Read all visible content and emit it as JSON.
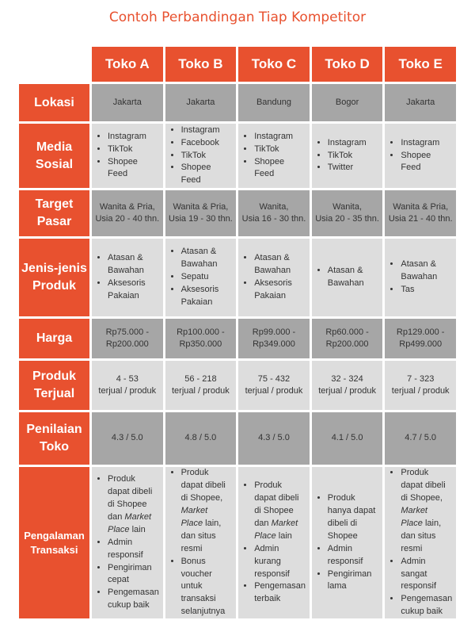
{
  "title": "Contoh Perbandingan Tiap Kompetitor",
  "stores": [
    "Toko A",
    "Toko B",
    "Toko C",
    "Toko D",
    "Toko E"
  ],
  "rows": {
    "lokasi": {
      "label": "Lokasi",
      "cells": [
        "Jakarta",
        "Jakarta",
        "Bandung",
        "Bogor",
        "Jakarta"
      ]
    },
    "media_sosial": {
      "label_1": "Media",
      "label_2": "Sosial",
      "cells": [
        [
          "Instagram",
          "TikTok",
          "Shopee Feed"
        ],
        [
          "Instagram",
          "Facebook",
          "TikTok",
          "Shopee Feed"
        ],
        [
          "Instagram",
          "TikTok",
          "Shopee Feed"
        ],
        [
          "Instagram",
          "TikTok",
          "Twitter"
        ],
        [
          "Instagram",
          "Shopee Feed"
        ]
      ]
    },
    "target_pasar": {
      "label_1": "Target",
      "label_2": "Pasar",
      "cells": [
        [
          "Wanita & Pria,",
          "Usia 20 - 40 thn."
        ],
        [
          "Wanita & Pria,",
          "Usia 19 - 30 thn."
        ],
        [
          "Wanita,",
          "Usia 16 - 30 thn."
        ],
        [
          "Wanita,",
          "Usia 20 - 35 thn."
        ],
        [
          "Wanita & Pria,",
          "Usia 21 - 40 thn."
        ]
      ]
    },
    "jenis_produk": {
      "label_1": "Jenis-jenis",
      "label_2": "Produk",
      "cells": [
        [
          "Atasan & Bawahan",
          "Aksesoris Pakaian"
        ],
        [
          "Atasan & Bawahan",
          "Sepatu",
          "Aksesoris Pakaian"
        ],
        [
          "Atasan & Bawahan",
          "Aksesoris Pakaian"
        ],
        [
          "Atasan & Bawahan"
        ],
        [
          "Atasan & Bawahan",
          "Tas"
        ]
      ]
    },
    "harga": {
      "label": "Harga",
      "cells": [
        [
          "Rp75.000 -",
          "Rp200.000"
        ],
        [
          "Rp100.000 -",
          "Rp350.000"
        ],
        [
          "Rp99.000 -",
          "Rp349.000"
        ],
        [
          "Rp60.000 -",
          "Rp200.000"
        ],
        [
          "Rp129.000 -",
          "Rp499.000"
        ]
      ]
    },
    "produk_terjual": {
      "label_1": "Produk",
      "label_2": "Terjual",
      "cells": [
        [
          "4 - 53",
          "terjual / produk"
        ],
        [
          "56 - 218",
          "terjual / produk"
        ],
        [
          "75 - 432",
          "terjual / produk"
        ],
        [
          "32 - 324",
          "terjual / produk"
        ],
        [
          "7 - 323",
          "terjual / produk"
        ]
      ]
    },
    "penilaian_toko": {
      "label_1": "Penilaian",
      "label_2": "Toko",
      "cells": [
        "4.3 / 5.0",
        "4.8 / 5.0",
        "4.3 / 5.0",
        "4.1 / 5.0",
        "4.7 / 5.0"
      ]
    },
    "pengalaman_transaksi": {
      "label_1": "Pengalaman",
      "label_2": "Transaksi",
      "cells": [
        {
          "b1_pre": "Produk dapat dibeli di Shopee dan ",
          "b1_italic": "Market Place",
          "b1_post": " lain",
          "rest": [
            "Admin responsif",
            "Pengiriman cepat",
            "Pengemasan cukup baik"
          ]
        },
        {
          "b1_pre": "Produk dapat dibeli di Shopee, ",
          "b1_italic": "Market Place",
          "b1_post": " lain, dan situs resmi",
          "rest": [
            "Bonus voucher untuk transaksi selanjutnya"
          ]
        },
        {
          "b1_pre": "Produk dapat dibeli di Shopee dan ",
          "b1_italic": "Market Place",
          "b1_post": " lain",
          "rest": [
            "Admin kurang responsif",
            "Pengemasan terbaik"
          ]
        },
        {
          "b1_pre": "Produk hanya dapat dibeli di Shopee",
          "b1_italic": "",
          "b1_post": "",
          "rest": [
            "Admin responsif",
            "Pengiriman lama"
          ]
        },
        {
          "b1_pre": "Produk dapat dibeli di Shopee, ",
          "b1_italic": "Market Place",
          "b1_post": " lain, dan situs resmi",
          "rest": [
            "Admin sangat responsif",
            "Pengemasan cukup baik"
          ]
        }
      ]
    }
  }
}
